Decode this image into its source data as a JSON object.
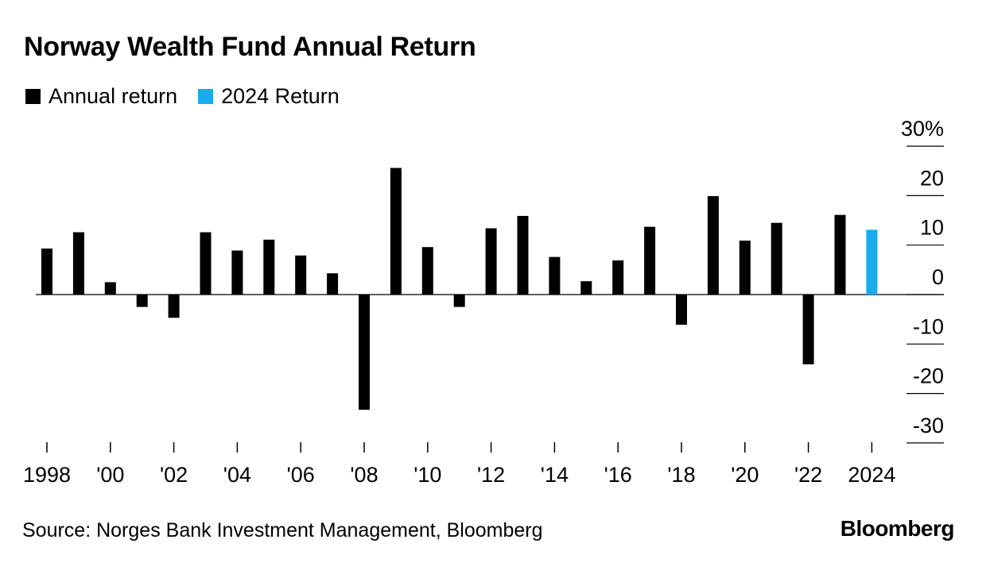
{
  "chart_data": {
    "type": "bar",
    "title": "Norway Wealth Fund Annual Return",
    "series": [
      {
        "name": "Annual return",
        "color": "#000000"
      },
      {
        "name": "2024 Return",
        "color": "#1aaaee"
      }
    ],
    "years": [
      1998,
      1999,
      2000,
      2001,
      2002,
      2003,
      2004,
      2005,
      2006,
      2007,
      2008,
      2009,
      2010,
      2011,
      2012,
      2013,
      2014,
      2015,
      2016,
      2017,
      2018,
      2019,
      2020,
      2021,
      2022,
      2023,
      2024
    ],
    "values": [
      9.3,
      12.6,
      2.5,
      -2.5,
      -4.7,
      12.6,
      8.9,
      11.1,
      7.9,
      4.3,
      -23.3,
      25.6,
      9.6,
      -2.5,
      13.4,
      15.9,
      7.6,
      2.7,
      6.9,
      13.7,
      -6.1,
      19.9,
      10.9,
      14.5,
      -14.1,
      16.1,
      13.1
    ],
    "highlight_year": 2024,
    "x_tick_labels": [
      "1998",
      "'00",
      "'02",
      "'04",
      "'06",
      "'08",
      "'10",
      "'12",
      "'14",
      "'16",
      "'18",
      "'20",
      "'22",
      "2024"
    ],
    "y_ticks": [
      30,
      20,
      10,
      0,
      -10,
      -20,
      -30
    ],
    "y_tick_labels": [
      "30%",
      "20",
      "10",
      "0",
      "-10",
      "-20",
      "-30"
    ],
    "ylim": [
      -30,
      30
    ],
    "xlabel": "",
    "ylabel": "",
    "y_axis_side": "right",
    "legend_position": "top-left"
  },
  "source": "Source: Norges Bank Investment Management, Bloomberg",
  "brand": "Bloomberg"
}
